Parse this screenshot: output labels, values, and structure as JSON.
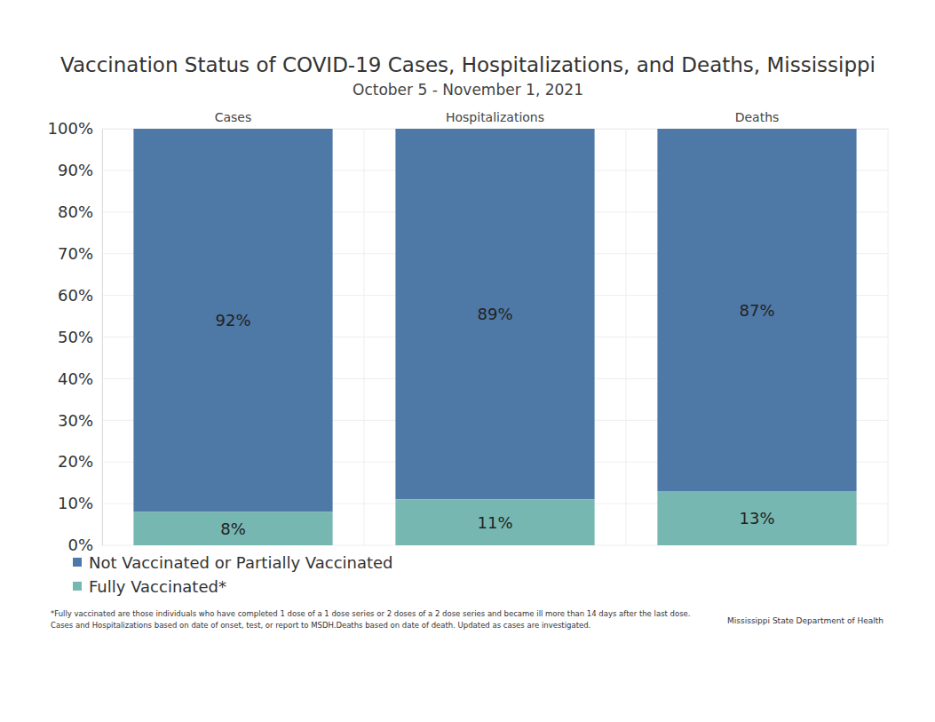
{
  "chart_data": {
    "type": "bar",
    "title": "Vaccination Status of COVID-19 Cases, Hospitalizations, and Deaths, Mississippi",
    "subtitle": "October 5 - November 1, 2021",
    "categories": [
      "Cases",
      "Hospitalizations",
      "Deaths"
    ],
    "series": [
      {
        "name": "Not Vaccinated or Partially Vaccinated",
        "color": "#4e79a7",
        "values": [
          92,
          89,
          87
        ],
        "value_labels": [
          "92%",
          "89%",
          "87%"
        ]
      },
      {
        "name": "Fully Vaccinated*",
        "color": "#76b7b2",
        "values": [
          8,
          11,
          13
        ],
        "value_labels": [
          "8%",
          "11%",
          "13%"
        ]
      }
    ],
    "ylim": [
      0,
      100
    ],
    "yticks": [
      {
        "value": 0,
        "label": "0%"
      },
      {
        "value": 10,
        "label": "10%"
      },
      {
        "value": 20,
        "label": "20%"
      },
      {
        "value": 30,
        "label": "30%"
      },
      {
        "value": 40,
        "label": "40%"
      },
      {
        "value": 50,
        "label": "50%"
      },
      {
        "value": 60,
        "label": "60%"
      },
      {
        "value": 70,
        "label": "70%"
      },
      {
        "value": 80,
        "label": "80%"
      },
      {
        "value": 90,
        "label": "90%"
      },
      {
        "value": 100,
        "label": "100%"
      }
    ],
    "stacked": true,
    "data_labels": true,
    "grid": true,
    "legend": "bottom left",
    "notes": [
      "*Fully vaccinated are those individuals who have completed 1 dose of a 1 dose series or 2 doses of a 2 dose series and became ill more than 14 days after the last dose.",
      "Cases and Hospitalizations based on date of onset, test, or report to MSDH.Deaths based on date of death. Updated as cases are investigated."
    ],
    "source": "Mississippi State Department of Health"
  }
}
